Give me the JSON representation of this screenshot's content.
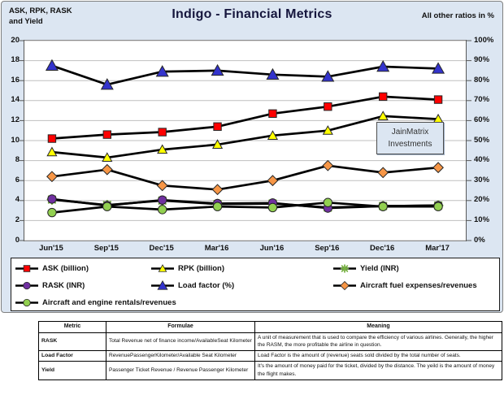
{
  "header": {
    "axis_title_lines": [
      "ASK, RPK, RASK",
      "and Yield"
    ],
    "title": "Indigo - Financial Metrics",
    "note_right": "All other ratios in %"
  },
  "overlay": {
    "lines": [
      "JainMatrix",
      "Investments"
    ]
  },
  "chart_data": {
    "type": "line",
    "title": "Indigo - Financial Metrics",
    "categories": [
      "Jun'15",
      "Sep'15",
      "Dec'15",
      "Mar'16",
      "Jun'16",
      "Sep'16",
      "Dec'16",
      "Mar'17"
    ],
    "left_axis": {
      "label": "ASK, RPK, RASK and Yield",
      "min": 0,
      "max": 20,
      "ticks": [
        "20",
        "18",
        "16",
        "14",
        "12",
        "10",
        "8",
        "6",
        "4",
        "2",
        "0"
      ]
    },
    "right_axis": {
      "label": "All other ratios in %",
      "min": 0,
      "max": 100,
      "ticks": [
        "100%",
        "90%",
        "80%",
        "70%",
        "60%",
        "50%",
        "40%",
        "30%",
        "20%",
        "10%",
        "0%"
      ]
    },
    "grid": true,
    "legend_position": "bottom",
    "series": [
      {
        "name": "ASK (billion)",
        "axis": "left",
        "marker": "square",
        "color": "#ff0000",
        "values": [
          10.2,
          10.6,
          10.85,
          11.4,
          12.7,
          13.4,
          14.4,
          14.1
        ]
      },
      {
        "name": "RPK (billion)",
        "axis": "left",
        "marker": "triangle",
        "color": "#ffff00",
        "values": [
          8.85,
          8.3,
          9.1,
          9.6,
          10.5,
          11.0,
          12.45,
          12.15
        ]
      },
      {
        "name": "Yield (INR)",
        "axis": "left",
        "marker": "xstar",
        "color": "#76b041",
        "values": [
          4.1,
          3.55,
          4.0,
          3.65,
          3.7,
          3.3,
          3.45,
          3.5
        ]
      },
      {
        "name": "RASK (INR)",
        "axis": "left",
        "marker": "circle",
        "color": "#7030a0",
        "values": [
          4.15,
          3.5,
          4.05,
          3.7,
          3.75,
          3.25,
          3.45,
          3.5
        ]
      },
      {
        "name": "Load factor (%)",
        "axis": "right",
        "marker": "triangle-big",
        "color": "#3333cc",
        "values": [
          87.5,
          78,
          84.5,
          85,
          83,
          82,
          87,
          86
        ]
      },
      {
        "name": "Aircraft fuel expenses/revenues",
        "axis": "right",
        "marker": "diamond",
        "color": "#f79646",
        "values": [
          32,
          35.5,
          27.5,
          25.5,
          30,
          37.5,
          34,
          36.5
        ]
      },
      {
        "name": "Aircraft and engine rentals/revenues",
        "axis": "right",
        "marker": "circle",
        "color": "#92d050",
        "values": [
          14,
          17,
          15.5,
          17,
          16.5,
          19,
          17,
          17
        ]
      }
    ],
    "line_color": "#000000",
    "gridline_color": "#bfbfbf"
  },
  "table": {
    "headers": [
      "Metric",
      "Formulae",
      "Meaning"
    ],
    "rows": [
      {
        "metric": "RASK",
        "formulae": "Total Revenue net of finance income/AvailableSeat Kilometer",
        "meaning": "A unit of measurement that is used to compare the efficiency of various airlines.  Generally, the higher the RASM, the more profitable the airline in question."
      },
      {
        "metric": "Load Factor",
        "formulae": "RevenuePassengerKilometer/Available Seat Kilometer",
        "meaning": "Load Factor is the amount of (revenue) seats sold divided by the total number of seats."
      },
      {
        "metric": "Yield",
        "formulae": "Passenger Ticket Revenue / Revenue Passenger Kilometer",
        "meaning": "It's the amount of money paid for the ticket, divided by the distance. The yeild is the amount of money the flight makes."
      }
    ]
  }
}
